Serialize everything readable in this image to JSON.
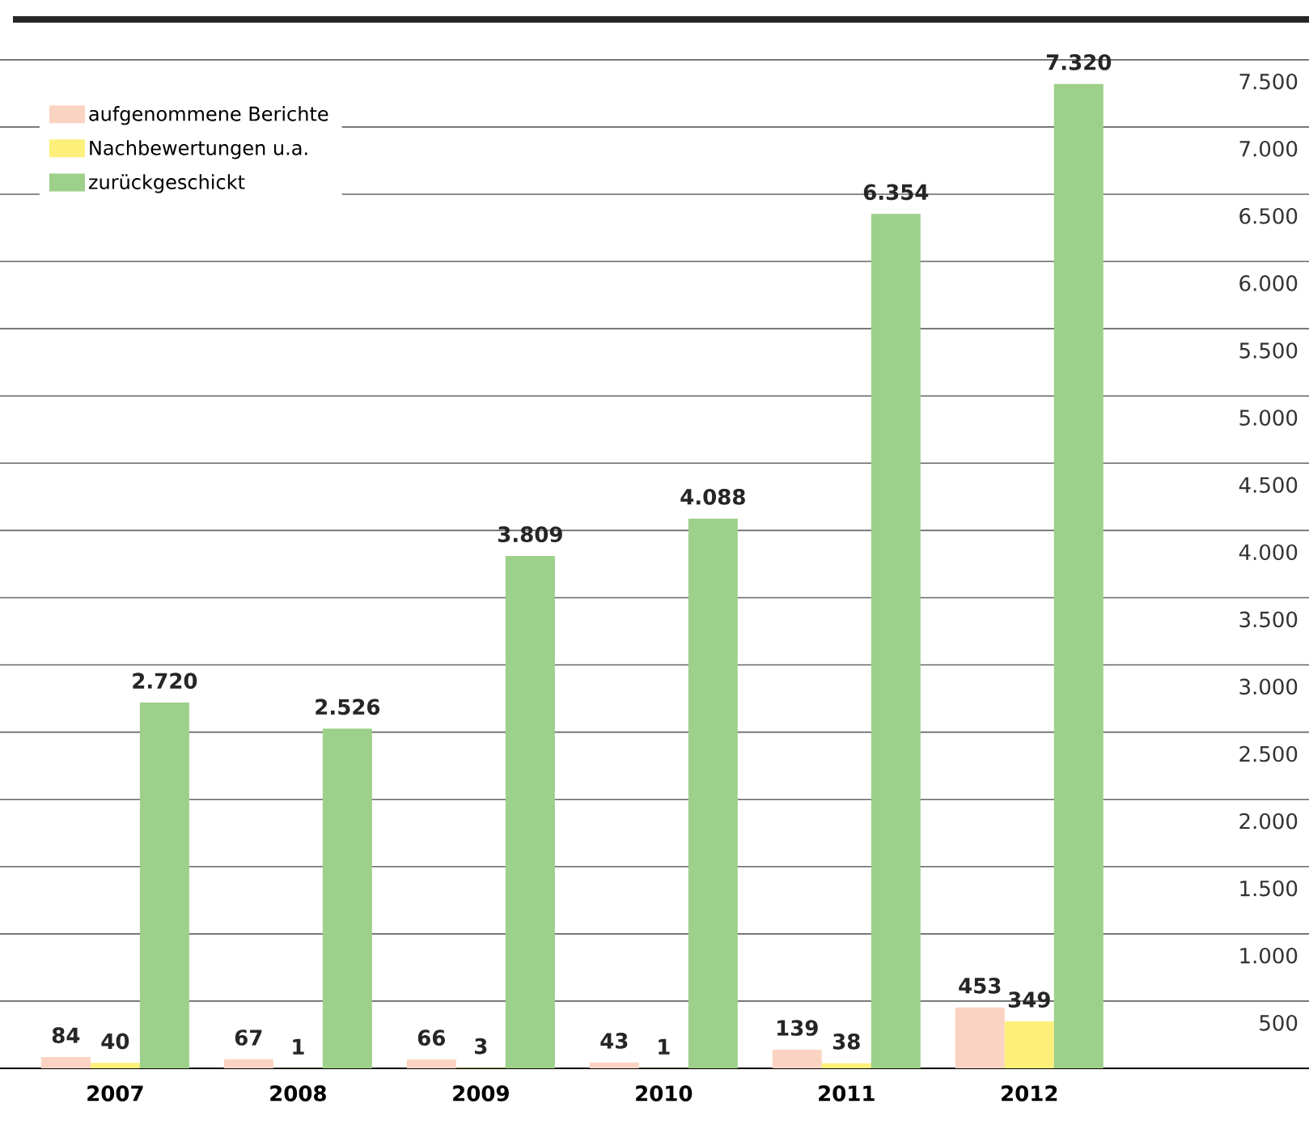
{
  "chart_data": {
    "type": "bar",
    "categories": [
      "2007",
      "2008",
      "2009",
      "2010",
      "2011",
      "2012"
    ],
    "series": [
      {
        "name": "aufgenommene Berichte",
        "color": "#fbd3c3",
        "values": [
          84,
          67,
          66,
          43,
          139,
          453
        ],
        "value_labels": [
          "84",
          "67",
          "66",
          "43",
          "139",
          "453"
        ]
      },
      {
        "name": "Nachbewertungen u.a.",
        "color": "#fdf07a",
        "values": [
          40,
          1,
          3,
          1,
          38,
          349
        ],
        "value_labels": [
          "40",
          "1",
          "3",
          "1",
          "38",
          "349"
        ]
      },
      {
        "name": "zurückgeschickt",
        "color": "#9dd08a",
        "values": [
          2720,
          2526,
          3809,
          4088,
          6354,
          7320
        ],
        "value_labels": [
          "2.720",
          "2.526",
          "3.809",
          "4.088",
          "6.354",
          "7.320"
        ]
      }
    ],
    "ylim": [
      0,
      7800
    ],
    "yticks": [
      {
        "value": 500,
        "label": "500"
      },
      {
        "value": 1000,
        "label": "1.000"
      },
      {
        "value": 1500,
        "label": "1.500"
      },
      {
        "value": 2000,
        "label": "2.000"
      },
      {
        "value": 2500,
        "label": "2.500"
      },
      {
        "value": 3000,
        "label": "3.000"
      },
      {
        "value": 3500,
        "label": "3.500"
      },
      {
        "value": 4000,
        "label": "4.000"
      },
      {
        "value": 4500,
        "label": "4.500"
      },
      {
        "value": 5000,
        "label": "5.000"
      },
      {
        "value": 5500,
        "label": "5.500"
      },
      {
        "value": 6000,
        "label": "6.000"
      },
      {
        "value": 6500,
        "label": "6.500"
      },
      {
        "value": 7000,
        "label": "7.000"
      },
      {
        "value": 7500,
        "label": "7.500"
      }
    ],
    "grid": "y",
    "legend": "top left"
  }
}
